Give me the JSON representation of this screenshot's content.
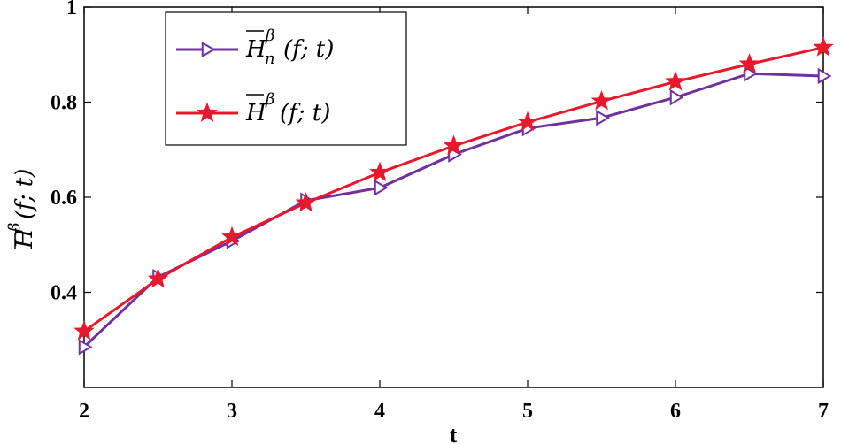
{
  "chart_data": {
    "type": "line",
    "xlabel": "t",
    "ylabel": "H̄^β(f;t)",
    "xlim": [
      2,
      7
    ],
    "ylim": [
      0.2,
      1
    ],
    "x_ticks": [
      "2",
      "3",
      "4",
      "5",
      "6",
      "7"
    ],
    "y_ticks": [
      "0.4",
      "0.6",
      "0.8",
      "1"
    ],
    "grid": false,
    "legend_position": "top-left",
    "series": [
      {
        "name": "H̄_n^β(f;t)",
        "name_parts": {
          "base": "H",
          "sup": "β",
          "sub": "n",
          "args": "(f; t)"
        },
        "color": "#7030A0",
        "marker": "triangle-right",
        "x": [
          2,
          2.5,
          3,
          3.5,
          4,
          4.5,
          5,
          5.5,
          6,
          6.5,
          7
        ],
        "y": [
          0.285,
          0.432,
          0.508,
          0.593,
          0.62,
          0.69,
          0.745,
          0.767,
          0.81,
          0.86,
          0.855
        ]
      },
      {
        "name": "H̄^β(f;t)",
        "name_parts": {
          "base": "H",
          "sup": "β",
          "sub": "",
          "args": "(f; t)"
        },
        "color": "#E8192C",
        "marker": "star",
        "x": [
          2,
          2.5,
          3,
          3.5,
          4,
          4.5,
          5,
          5.5,
          6,
          6.5,
          7
        ],
        "y": [
          0.318,
          0.428,
          0.516,
          0.588,
          0.652,
          0.708,
          0.758,
          0.802,
          0.843,
          0.88,
          0.915
        ]
      }
    ]
  }
}
